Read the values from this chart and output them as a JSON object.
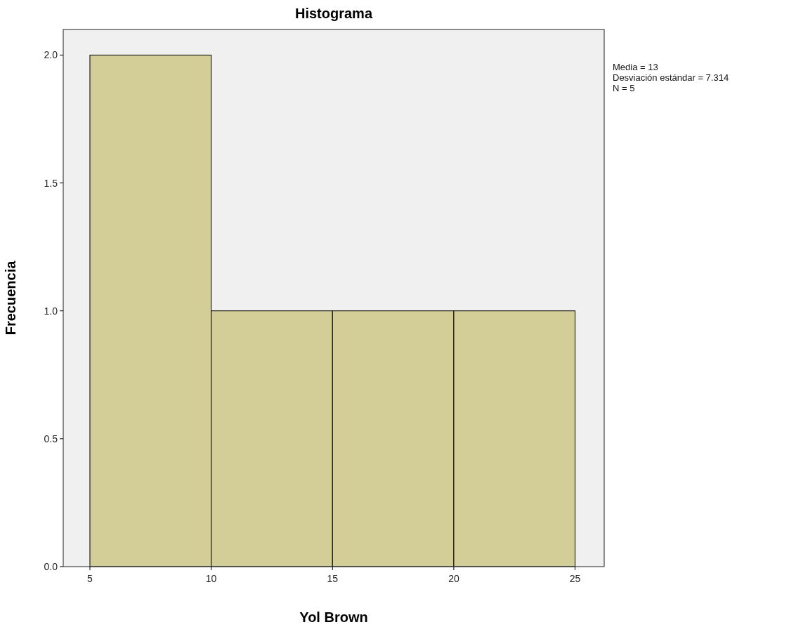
{
  "chart_data": {
    "type": "histogram",
    "title": "Histograma",
    "xlabel": "Yol Brown",
    "ylabel": "Frecuencia",
    "bins": [
      5,
      10,
      15,
      20,
      25
    ],
    "values": [
      2,
      1,
      1,
      1
    ],
    "color": "#d3ce97",
    "xlim": [
      3.9,
      26.2
    ],
    "xticks": [
      5,
      10,
      15,
      20,
      25
    ],
    "ylim": [
      0,
      2.1
    ],
    "yticks": [
      {
        "value": 0,
        "label": "0.0"
      },
      {
        "value": 0.5,
        "label": "0.5"
      },
      {
        "value": 1,
        "label": "1.0"
      },
      {
        "value": 1.5,
        "label": "1.5"
      },
      {
        "value": 2,
        "label": "2.0"
      }
    ],
    "grid": false,
    "annotations": [
      "Media = 13",
      "Desviación estándar = 7.314",
      "N = 5"
    ]
  }
}
